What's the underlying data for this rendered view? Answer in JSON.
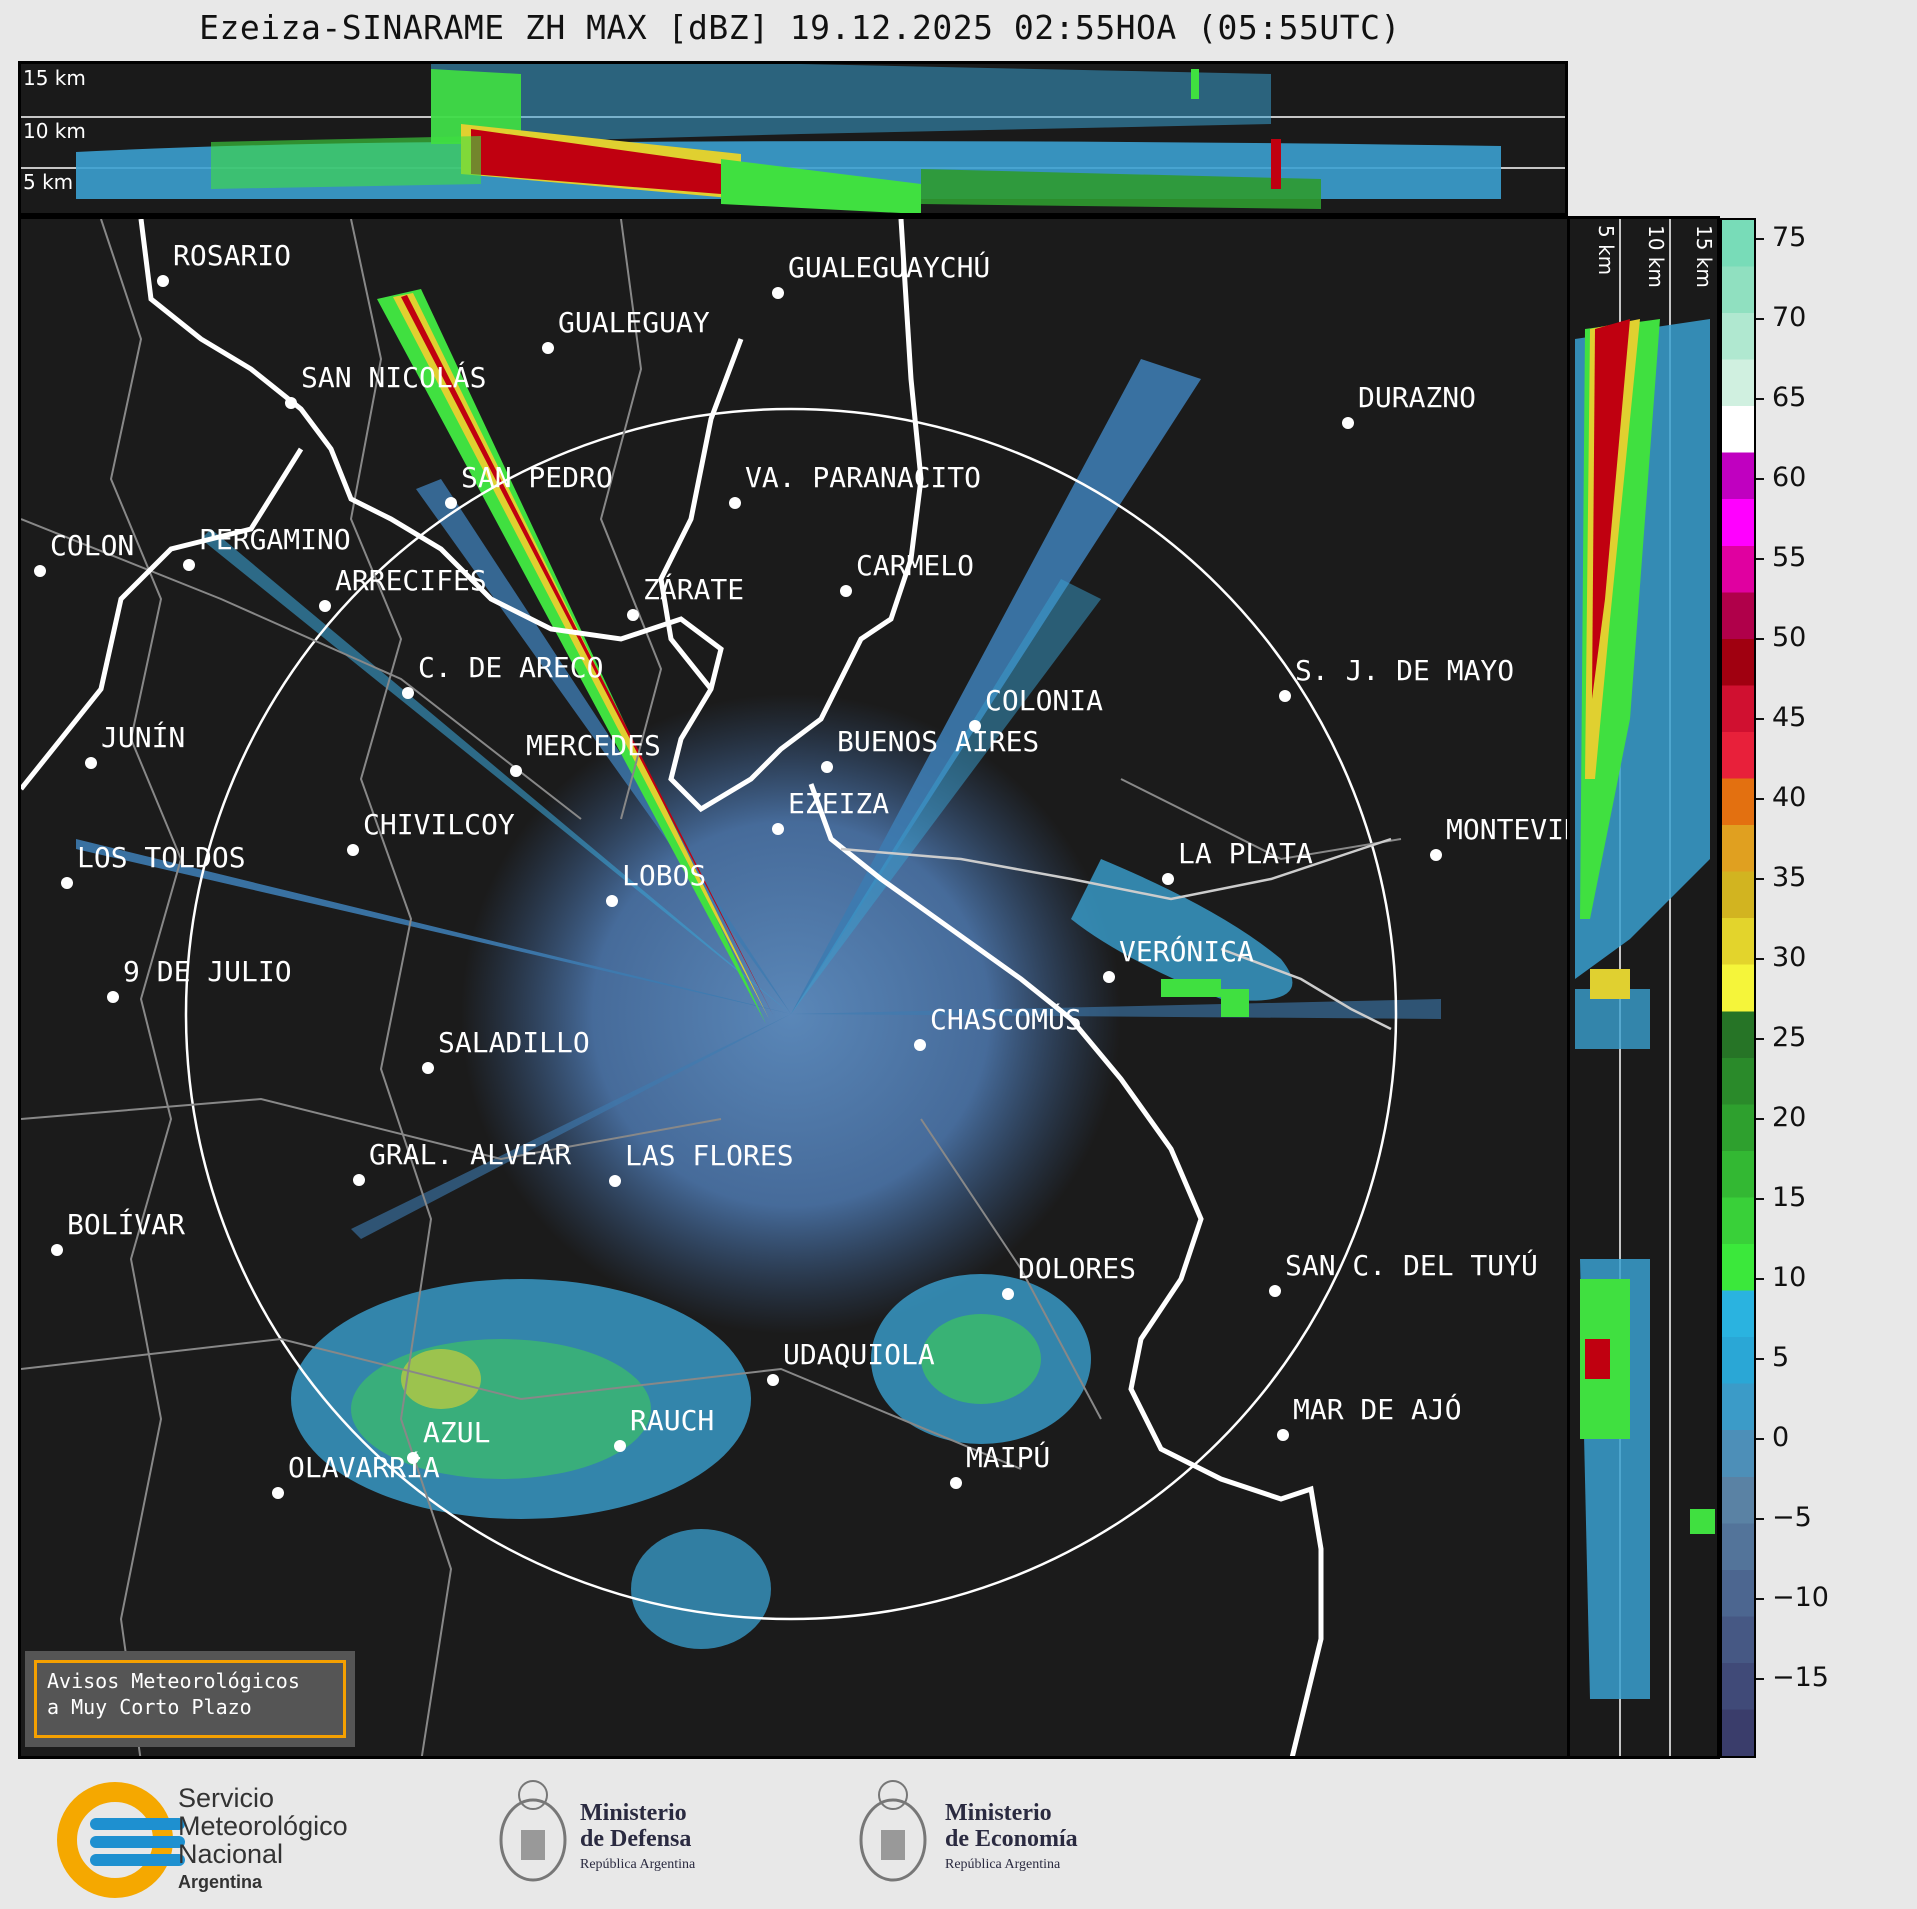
{
  "title": "Ezeiza-SINARAME ZH MAX [dBZ] 19.12.2025 02:55HOA (05:55UTC)",
  "top_panel": {
    "labels": [
      "15 km",
      "10 km",
      "5 km"
    ]
  },
  "side_panel": {
    "labels": [
      "5 km",
      "10 km",
      "15 km"
    ]
  },
  "colorbar": {
    "ticks": [
      "75",
      "70",
      "65",
      "60",
      "55",
      "50",
      "45",
      "40",
      "35",
      "30",
      "25",
      "20",
      "15",
      "10",
      "5",
      "0",
      "−5",
      "−10",
      "−15"
    ],
    "colors": [
      "#3a3d6b",
      "#404a78",
      "#465884",
      "#4c6690",
      "#53749a",
      "#5a82a4",
      "#4d8fb8",
      "#3b9bc8",
      "#2aa7d6",
      "#2ab3e0",
      "#3be83b",
      "#39d039",
      "#33b833",
      "#2ea02e",
      "#2a8a2a",
      "#267426",
      "#f5f53a",
      "#e3d42c",
      "#d2b420",
      "#e0a020",
      "#e37010",
      "#e8203a",
      "#d01030",
      "#a00010",
      "#b0004a",
      "#e000a0",
      "#ff00ff",
      "#c000c0",
      "#ffffff",
      "#d0f0e0",
      "#b0e8d0",
      "#90e0c0",
      "#78dcb8"
    ]
  },
  "cities": [
    {
      "name": "ROSARIO"
    },
    {
      "name": "GUALEGUAYCHÚ"
    },
    {
      "name": "GUALEGUAY"
    },
    {
      "name": "SAN NICOLÁS"
    },
    {
      "name": "DURAZNO"
    },
    {
      "name": "SAN PEDRO"
    },
    {
      "name": "VA. PARANACITO"
    },
    {
      "name": "COLON"
    },
    {
      "name": "PERGAMINO"
    },
    {
      "name": "CARMELO"
    },
    {
      "name": "ARRECIFES"
    },
    {
      "name": "ZÁRATE"
    },
    {
      "name": "S. J. DE MAYO"
    },
    {
      "name": "C. DE ARECO"
    },
    {
      "name": "COLONIA"
    },
    {
      "name": "JUNÍN"
    },
    {
      "name": "BUENOS AIRES"
    },
    {
      "name": "MERCEDES"
    },
    {
      "name": "EZEIZA"
    },
    {
      "name": "MONTEVIDEO"
    },
    {
      "name": "CHIVILCOY"
    },
    {
      "name": "LA PLATA"
    },
    {
      "name": "LOS TOLDOS"
    },
    {
      "name": "LOBOS"
    },
    {
      "name": "VERÓNICA"
    },
    {
      "name": "9 DE JULIO"
    },
    {
      "name": "CHASCOMÚS"
    },
    {
      "name": "SALADILLO"
    },
    {
      "name": "GRAL. ALVEAR"
    },
    {
      "name": "LAS FLORES"
    },
    {
      "name": "BOLÍVAR"
    },
    {
      "name": "DOLORES"
    },
    {
      "name": "SAN C. DEL TUYÚ"
    },
    {
      "name": "UDAQUIOLA"
    },
    {
      "name": "MAR DE AJÓ"
    },
    {
      "name": "RAUCH"
    },
    {
      "name": "AZUL"
    },
    {
      "name": "OLAVARRÍA"
    },
    {
      "name": "MAIPÚ"
    }
  ],
  "aviso": {
    "line1": "Avisos Meteorológicos",
    "line2": "a Muy Corto Plazo"
  },
  "footer": {
    "smn": {
      "line1": "Servicio",
      "line2": "Meteorológico",
      "line3": "Nacional",
      "line4": "Argentina"
    },
    "defensa": {
      "line1": "Ministerio",
      "line2": "de Defensa",
      "line3": "República Argentina"
    },
    "economia": {
      "line1": "Ministerio",
      "line2": "de Economía",
      "line3": "República Argentina"
    }
  }
}
